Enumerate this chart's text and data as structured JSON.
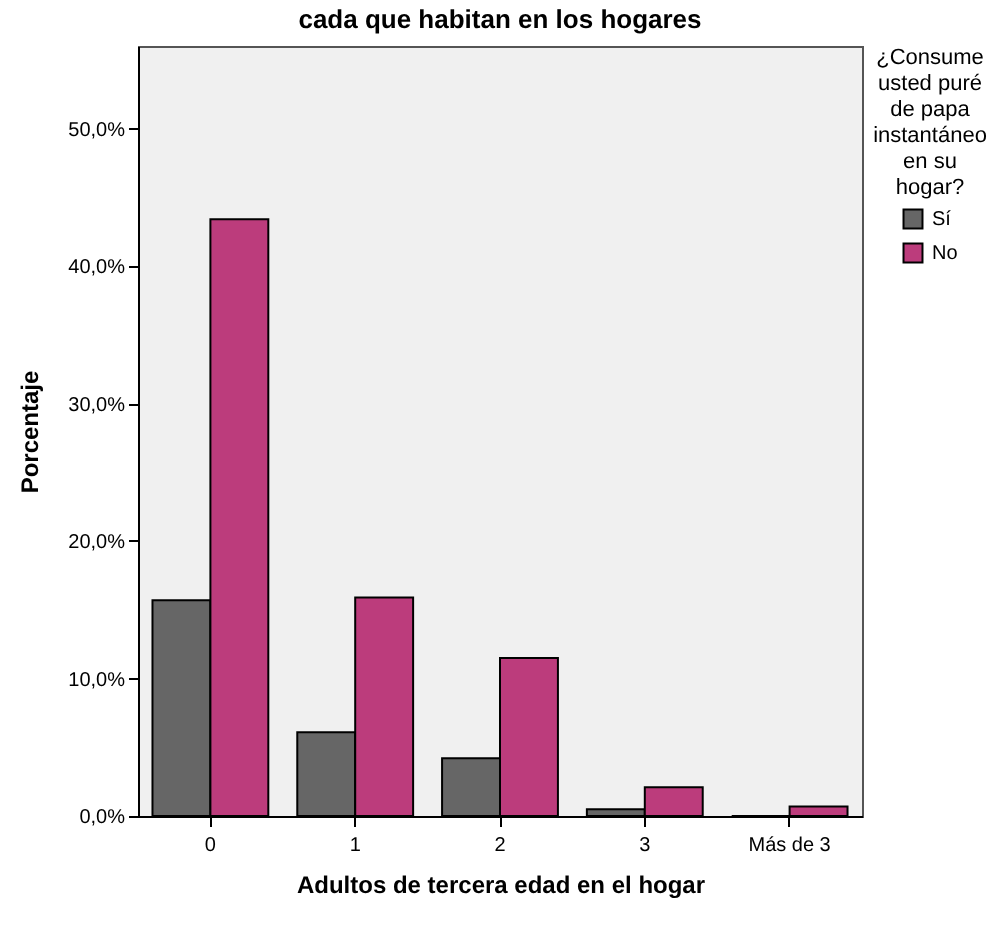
{
  "chart_data": {
    "type": "bar",
    "title": "cada que habitan en los hogares",
    "xlabel": "Adultos de tercera edad en el hogar",
    "ylabel": "Porcentaje",
    "legend_title": "¿Consume usted puré de papa instantáneo en su hogar?",
    "categories": [
      "0",
      "1",
      "2",
      "3",
      "Más de 3"
    ],
    "series": [
      {
        "name": "Sí",
        "color": "#666666",
        "values": [
          15.7,
          6.1,
          4.2,
          0.5,
          0
        ]
      },
      {
        "name": "No",
        "color": "#bc3c7c",
        "values": [
          43.4,
          15.9,
          11.5,
          2.1,
          0.7
        ]
      }
    ],
    "ylim": [
      0,
      56
    ],
    "yticks": [
      {
        "value": 0,
        "label": "0,0%"
      },
      {
        "value": 10,
        "label": "10,0%"
      },
      {
        "value": 20,
        "label": "20,0%"
      },
      {
        "value": 30,
        "label": "30,0%"
      },
      {
        "value": 40,
        "label": "40,0%"
      },
      {
        "value": 50,
        "label": "50,0%"
      }
    ],
    "grid": false,
    "legend": "top right"
  }
}
